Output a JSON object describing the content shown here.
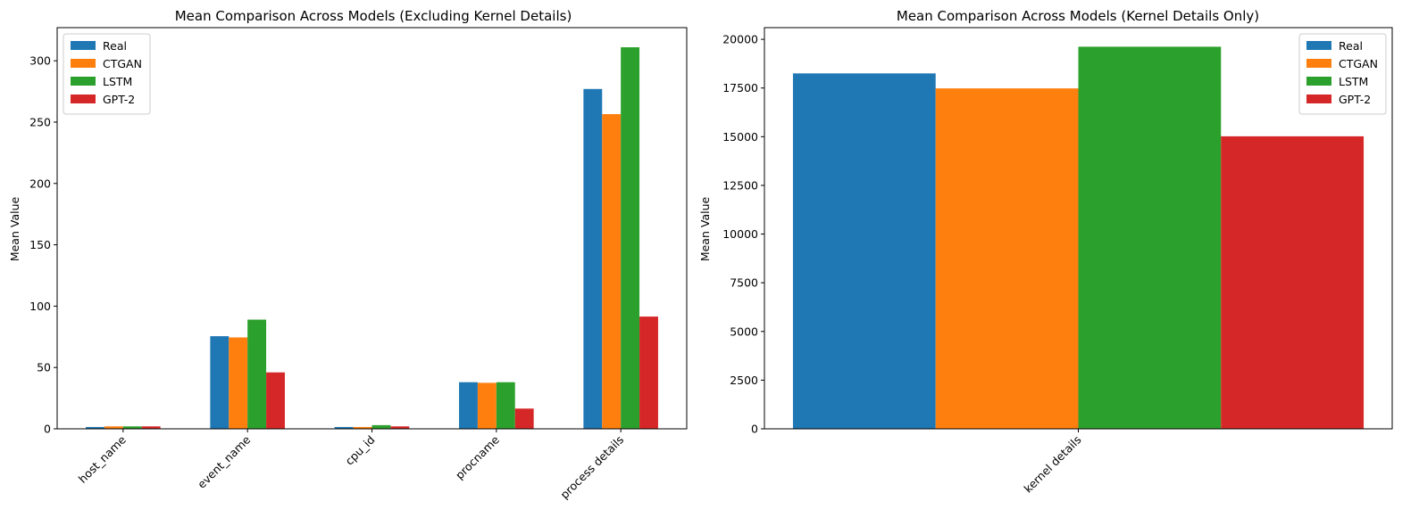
{
  "chart_data": [
    {
      "type": "bar",
      "title": "Mean Comparison Across Models (Excluding Kernel Details)",
      "xlabel": "",
      "ylabel": "Mean Value",
      "categories": [
        "host_name",
        "event_name",
        "cpu_id",
        "procname",
        "process details"
      ],
      "series": [
        {
          "name": "Real",
          "color": "#1f77b4",
          "values": [
            1.5,
            75.5,
            1.5,
            38.0,
            277.0
          ]
        },
        {
          "name": "CTGAN",
          "color": "#ff7f0e",
          "values": [
            2.0,
            74.5,
            1.5,
            37.5,
            256.5
          ]
        },
        {
          "name": "LSTM",
          "color": "#2ca02c",
          "values": [
            2.0,
            89.0,
            3.0,
            38.0,
            311.0
          ]
        },
        {
          "name": "GPT-2",
          "color": "#d62728",
          "values": [
            2.0,
            46.0,
            2.0,
            16.5,
            91.5
          ]
        }
      ],
      "ylim": [
        0,
        327
      ],
      "yticks": [
        0,
        50,
        100,
        150,
        200,
        250,
        300
      ],
      "grid": false,
      "legend_position": "top-left"
    },
    {
      "type": "bar",
      "title": "Mean Comparison Across Models (Kernel Details Only)",
      "xlabel": "",
      "ylabel": "Mean Value",
      "categories": [
        "kernel details"
      ],
      "series": [
        {
          "name": "Real",
          "color": "#1f77b4",
          "values": [
            18250
          ]
        },
        {
          "name": "CTGAN",
          "color": "#ff7f0e",
          "values": [
            17480
          ]
        },
        {
          "name": "LSTM",
          "color": "#2ca02c",
          "values": [
            19620
          ]
        },
        {
          "name": "GPT-2",
          "color": "#d62728",
          "values": [
            15020
          ]
        }
      ],
      "ylim": [
        0,
        20600
      ],
      "yticks": [
        0,
        2500,
        5000,
        7500,
        10000,
        12500,
        15000,
        17500,
        20000
      ],
      "grid": false,
      "legend_position": "top-right"
    }
  ]
}
